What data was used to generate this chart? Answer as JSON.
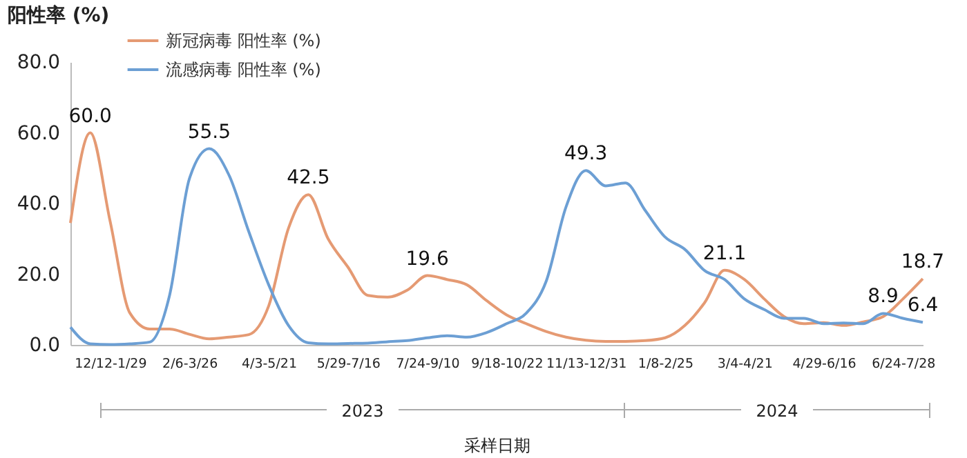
{
  "chart_data": {
    "type": "line",
    "ylabel": "阳性率 (%)",
    "xlabel": "采样日期",
    "categories": [
      null,
      null,
      "12/12-1/29",
      null,
      null,
      null,
      "2/6-3/26",
      null,
      null,
      null,
      "4/3-5/21",
      null,
      null,
      null,
      "5/29-7/16",
      null,
      null,
      null,
      "7/24-9/10",
      null,
      null,
      null,
      "9/18-10/22",
      null,
      null,
      null,
      "11/13-12/31",
      null,
      null,
      null,
      "1/8-2/25",
      null,
      null,
      null,
      "3/4-4/21",
      null,
      null,
      null,
      "4/29-6/16",
      null,
      null,
      null,
      "6/24-7/28",
      null
    ],
    "series": [
      {
        "name": "新冠病毒 阳性率 (%)",
        "color": "#e59a73",
        "values": [
          34.5,
          60.0,
          35,
          9,
          4.5,
          4.5,
          3,
          1.7,
          2.2,
          2.9,
          11,
          33,
          42.5,
          30,
          22,
          14,
          13.5,
          15.5,
          19.6,
          18.5,
          17,
          12.5,
          8.5,
          6,
          3.8,
          2.2,
          1.3,
          1,
          1,
          1.2,
          2,
          5.5,
          12,
          21.1,
          18.5,
          13,
          8,
          6,
          6.3,
          5.5,
          6.5,
          8,
          13,
          18.7
        ],
        "value_labels": [
          null,
          "60.0",
          null,
          null,
          null,
          null,
          null,
          null,
          null,
          null,
          null,
          null,
          "42.5",
          null,
          null,
          null,
          null,
          null,
          "19.6",
          null,
          null,
          null,
          null,
          null,
          null,
          null,
          null,
          null,
          null,
          null,
          null,
          null,
          null,
          "21.1",
          null,
          null,
          null,
          null,
          null,
          null,
          null,
          null,
          null,
          "18.7"
        ]
      },
      {
        "name": "流感病毒 阳性率 (%)",
        "color": "#6c9fd4",
        "values": [
          5,
          0.3,
          0.1,
          0.3,
          0.8,
          14,
          47,
          55.5,
          48,
          32,
          17,
          5.5,
          0.6,
          0.3,
          0.4,
          0.5,
          0.9,
          1.2,
          2,
          2.6,
          2.2,
          3.5,
          6,
          9,
          18,
          39,
          49.3,
          45,
          45.8,
          38,
          30.5,
          27,
          21,
          18.5,
          13,
          10,
          7.5,
          7.5,
          6,
          6.2,
          6,
          8.9,
          7.5,
          6.4
        ],
        "value_labels": [
          null,
          null,
          null,
          null,
          null,
          null,
          null,
          "55.5",
          null,
          null,
          null,
          null,
          null,
          null,
          null,
          null,
          null,
          null,
          null,
          null,
          null,
          null,
          null,
          null,
          null,
          null,
          "49.3",
          null,
          null,
          null,
          null,
          null,
          null,
          null,
          null,
          null,
          null,
          null,
          null,
          null,
          null,
          "8.9",
          null,
          "6.4"
        ]
      }
    ],
    "ylim": [
      0,
      80
    ],
    "yticks": [
      {
        "value": 0,
        "label": "0.0"
      },
      {
        "value": 20,
        "label": "20.0"
      },
      {
        "value": 40,
        "label": "40.0"
      },
      {
        "value": 60,
        "label": "60.0"
      },
      {
        "value": 80,
        "label": "80.0"
      }
    ],
    "legend": "top left",
    "annotations": [
      "2023",
      "2024"
    ]
  }
}
